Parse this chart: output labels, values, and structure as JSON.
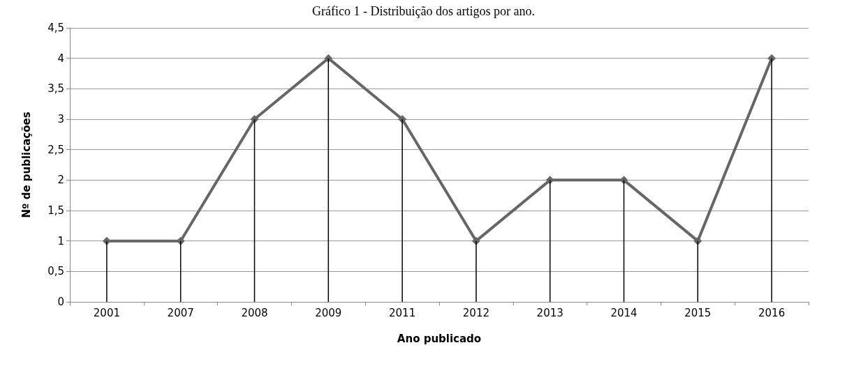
{
  "chart_data": {
    "type": "line",
    "title": "Gráfico 1 - Distribuição dos artigos por ano.",
    "xlabel": "Ano publicado",
    "ylabel": "Nº de publicações",
    "categories": [
      "2001",
      "2007",
      "2008",
      "2009",
      "2011",
      "2012",
      "2013",
      "2014",
      "2015",
      "2016"
    ],
    "series": [
      {
        "type": "bar",
        "color": "#000000",
        "values": [
          1,
          1,
          3,
          4,
          3,
          1,
          2,
          2,
          1,
          4
        ]
      },
      {
        "color": "#666666",
        "values": [
          1,
          1,
          3,
          4,
          3,
          1,
          2,
          2,
          1,
          4
        ]
      }
    ],
    "ylim": [
      0,
      4.5
    ],
    "yticks": [
      0,
      {
        "value": 0.5,
        "label": "0,5"
      },
      1,
      {
        "value": 1.5,
        "label": "1,5"
      },
      2,
      {
        "value": 2.5,
        "label": "2,5"
      },
      3,
      {
        "value": 3.5,
        "label": "3,5"
      },
      4,
      {
        "value": 4.5,
        "label": "4,5"
      }
    ],
    "grid": "y",
    "marker": "diamond",
    "line_style": "solid"
  }
}
